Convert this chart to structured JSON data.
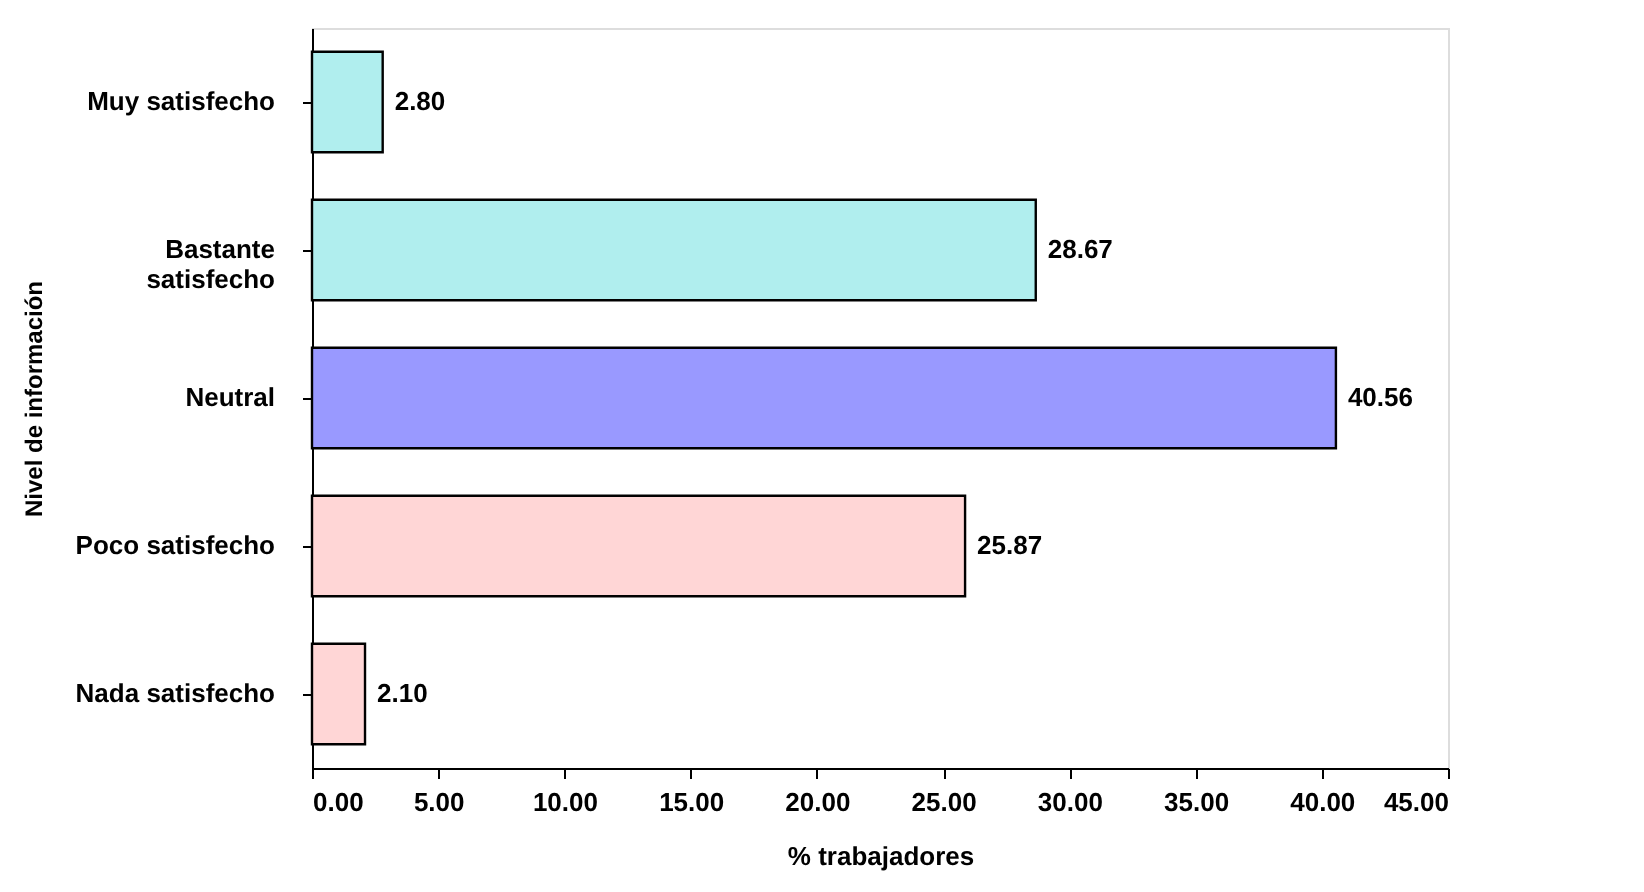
{
  "chart_data": {
    "type": "bar",
    "orientation": "horizontal",
    "xlabel": "% trabajadores",
    "ylabel": "Nivel de información",
    "categories": [
      "Muy satisfecho",
      "Bastante satisfecho",
      "Neutral",
      "Poco satisfecho",
      "Nada satisfecho"
    ],
    "values": [
      2.8,
      28.67,
      40.56,
      25.87,
      2.1
    ],
    "colors": [
      "#b0eeee",
      "#b0eeee",
      "#9999ff",
      "#ffd6d6",
      "#ffd6d6"
    ],
    "value_labels": [
      "2.80",
      "28.67",
      "40.56",
      "25.87",
      "2.10"
    ],
    "xlim": [
      0,
      45
    ],
    "xticks": [
      {
        "value": 0,
        "label": "0.00"
      },
      {
        "value": 5,
        "label": "5.00"
      },
      {
        "value": 10,
        "label": "10.00"
      },
      {
        "value": 15,
        "label": "15.00"
      },
      {
        "value": 20,
        "label": "20.00"
      },
      {
        "value": 25,
        "label": "25.00"
      },
      {
        "value": 30,
        "label": "30.00"
      },
      {
        "value": 35,
        "label": "35.00"
      },
      {
        "value": 40,
        "label": "40.00"
      },
      {
        "value": 45,
        "label": "45.00"
      }
    ],
    "grid": false
  }
}
